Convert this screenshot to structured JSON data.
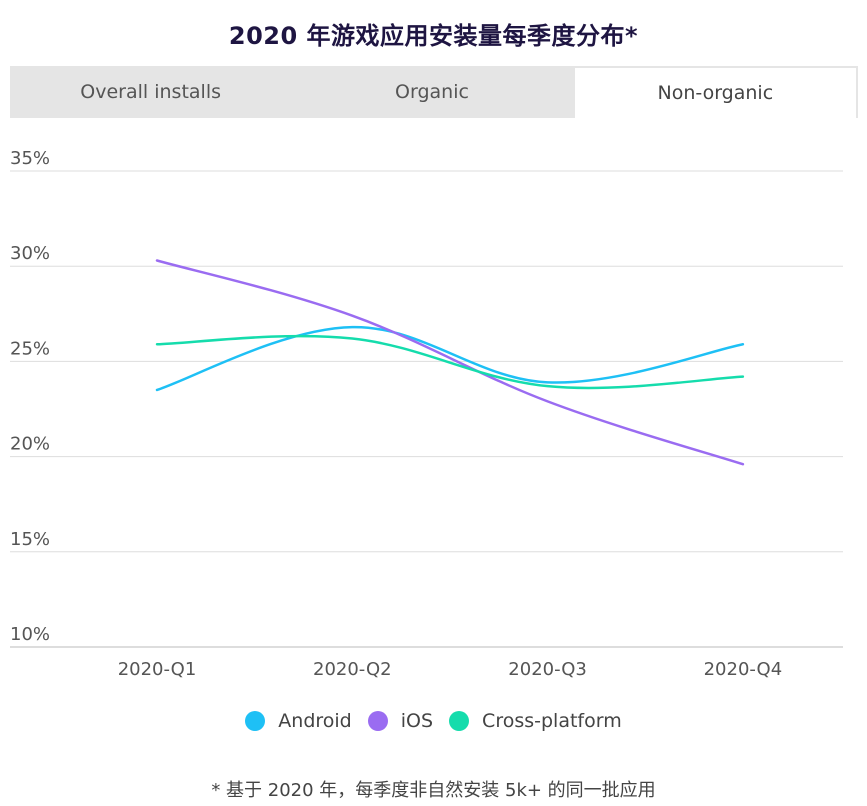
{
  "title": "2020 年游戏应用安装量每季度分布*",
  "tabs": [
    {
      "label": "Overall installs",
      "active": false
    },
    {
      "label": "Organic",
      "active": false
    },
    {
      "label": "Non-organic",
      "active": true
    }
  ],
  "footnote": "* 基于 2020 年，每季度非自然安装 5k+ 的同一批应用",
  "legend": [
    {
      "name": "Android",
      "color": "#1ec0f5"
    },
    {
      "name": "iOS",
      "color": "#9a6cf1"
    },
    {
      "name": "Cross-platform",
      "color": "#15dcac"
    }
  ],
  "chart_data": {
    "type": "line",
    "categories": [
      "2020-Q1",
      "2020-Q2",
      "2020-Q3",
      "2020-Q4"
    ],
    "y_ticks": [
      "35%",
      "30%",
      "25%",
      "20%",
      "15%",
      "10%"
    ],
    "y_tick_values": [
      35,
      30,
      25,
      20,
      15,
      10
    ],
    "ylim": [
      10,
      35
    ],
    "grid": true,
    "legend_position": "bottom",
    "series": [
      {
        "name": "Android",
        "color": "#1ec0f5",
        "values": [
          23.5,
          26.8,
          23.9,
          25.9
        ]
      },
      {
        "name": "iOS",
        "color": "#9a6cf1",
        "values": [
          30.3,
          27.4,
          22.9,
          19.6
        ]
      },
      {
        "name": "Cross-platform",
        "color": "#15dcac",
        "values": [
          25.9,
          26.2,
          23.7,
          24.2
        ]
      }
    ]
  }
}
